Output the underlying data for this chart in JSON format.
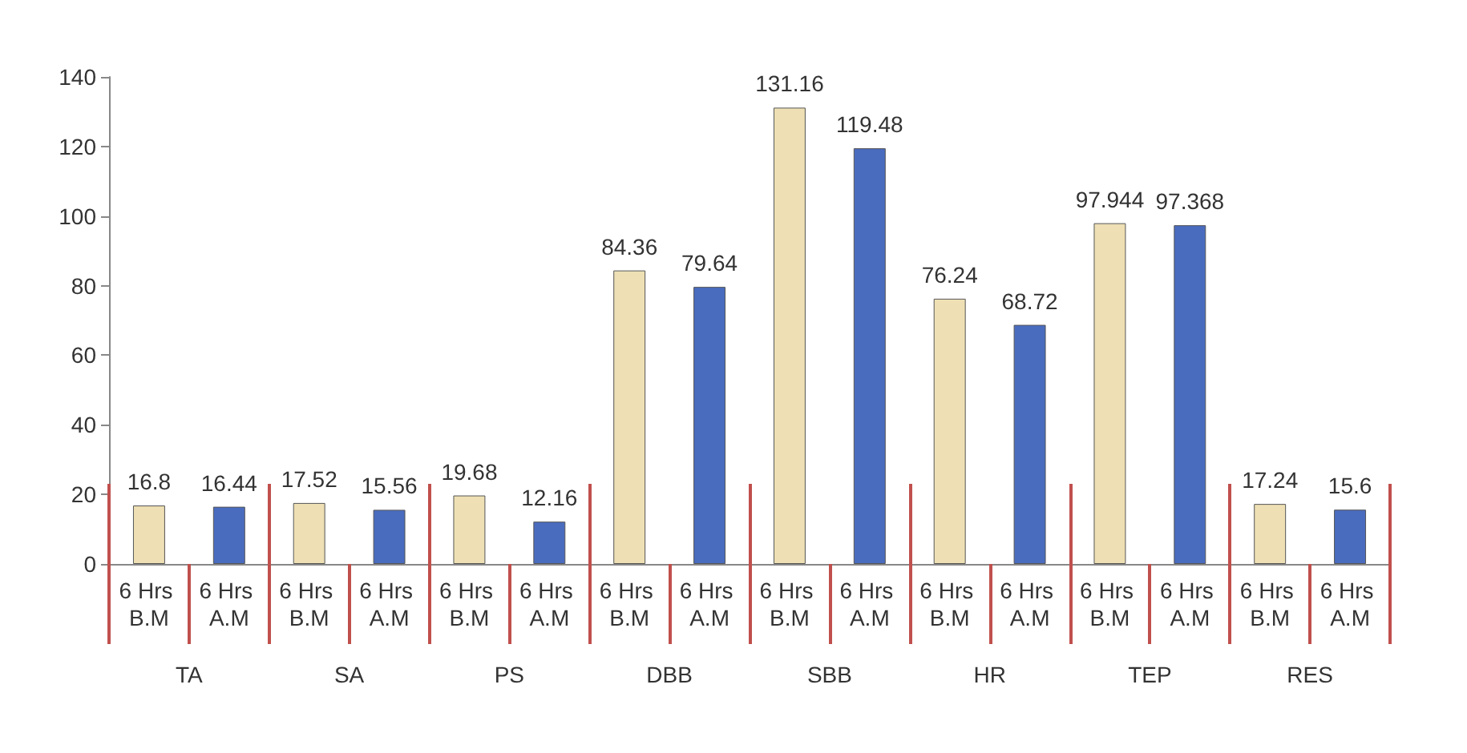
{
  "chart_data": {
    "type": "bar",
    "categories": [
      "TA",
      "SA",
      "PS",
      "DBB",
      "SBB",
      "HR",
      "TEP",
      "RES"
    ],
    "series": [
      {
        "name": "6 Hrs B.M",
        "color": "#eee0b4",
        "values": [
          16.8,
          17.52,
          19.68,
          84.36,
          131.16,
          76.24,
          97.944,
          17.24
        ]
      },
      {
        "name": "6 Hrs A.M",
        "color": "#4a6cbf",
        "values": [
          16.44,
          15.56,
          12.16,
          79.64,
          119.48,
          68.72,
          97.368,
          15.6
        ]
      }
    ],
    "ylim": [
      0,
      140
    ],
    "yticks": [
      0,
      20,
      40,
      60,
      80,
      100,
      120,
      140
    ],
    "grid": false,
    "legend": false,
    "data_labels": true
  }
}
